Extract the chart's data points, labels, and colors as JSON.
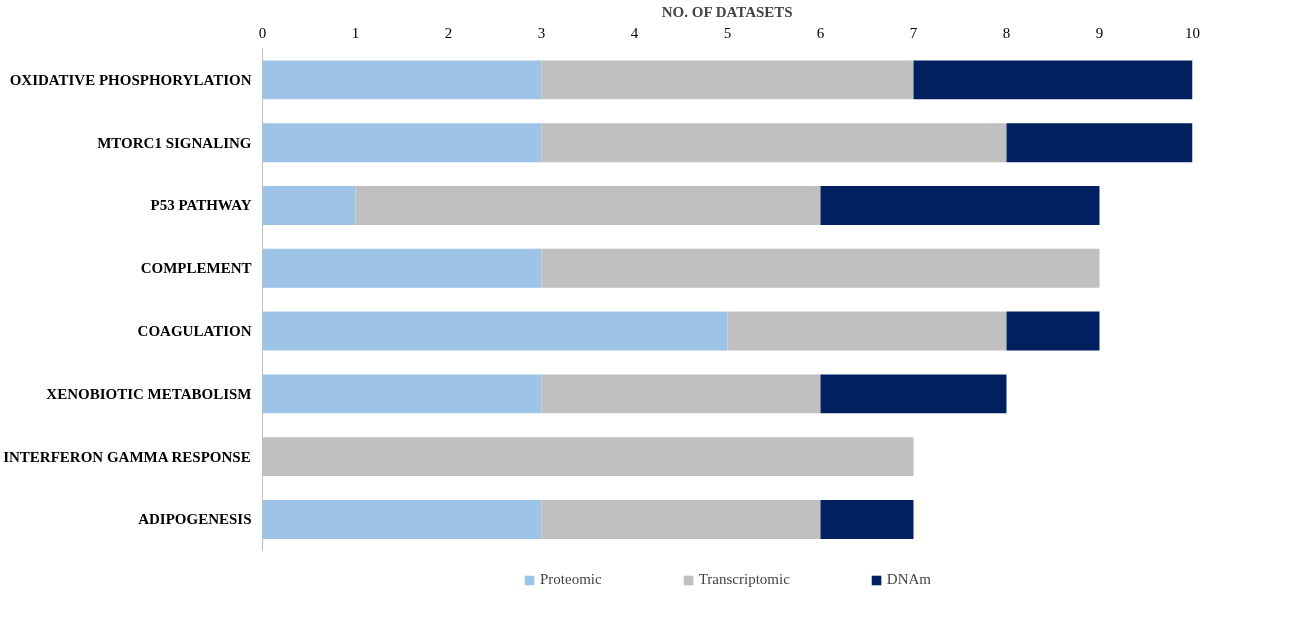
{
  "chart_data": {
    "type": "bar",
    "orientation": "horizontal",
    "stacked": true,
    "xlabel": "NO. OF DATASETS",
    "categories": [
      "OXIDATIVE PHOSPHORYLATION",
      "MTORC1 SIGNALING",
      "P53 PATHWAY",
      "COMPLEMENT",
      "COAGULATION",
      "XENOBIOTIC METABOLISM",
      "INTERFERON GAMMA RESPONSE",
      "ADIPOGENESIS"
    ],
    "series": [
      {
        "name": "Proteomic",
        "color": "#9dc3e6",
        "values": [
          3,
          3,
          1,
          3,
          5,
          3,
          0,
          3
        ]
      },
      {
        "name": "Transcriptomic",
        "color": "#bfbfbf",
        "values": [
          4,
          5,
          5,
          6,
          3,
          3,
          7,
          3
        ]
      },
      {
        "name": "DNAm",
        "color": "#002060",
        "values": [
          3,
          2,
          3,
          0,
          1,
          2,
          0,
          1
        ]
      }
    ],
    "xlim": [
      0,
      10
    ],
    "xticks": [
      0,
      1,
      2,
      3,
      4,
      5,
      6,
      7,
      8,
      9,
      10
    ],
    "grid": false,
    "legend": "bottom"
  }
}
